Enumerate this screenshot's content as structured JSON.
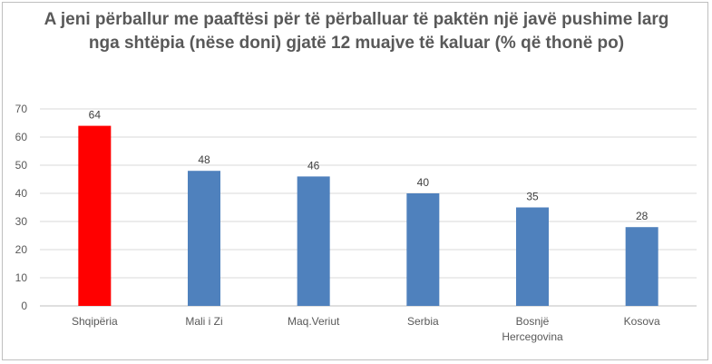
{
  "chart_data": {
    "type": "bar",
    "title": "A jeni përballur me paaftësi për të përballuar të paktën një javë pushime larg nga shtëpia (nëse doni) gjatë 12 muajve të kaluar (% që thonë po)",
    "categories": [
      "Shqipëria",
      "Mali i Zi",
      "Maq.Veriut",
      "Serbia",
      "Bosnjë Hercegovina",
      "Kosova"
    ],
    "category_lines": [
      [
        "Shqipëria"
      ],
      [
        "Mali i Zi"
      ],
      [
        "Maq.Veriut"
      ],
      [
        "Serbia"
      ],
      [
        "Bosnjë",
        "Hercegovina"
      ],
      [
        "Kosova"
      ]
    ],
    "values": [
      64,
      48,
      46,
      40,
      35,
      28
    ],
    "ylim": [
      0,
      70
    ],
    "yticks": [
      0,
      10,
      20,
      30,
      40,
      50,
      60,
      70
    ],
    "grid": true,
    "legend": "none",
    "colors": [
      "#ff0000",
      "#4f81bd",
      "#4f81bd",
      "#4f81bd",
      "#4f81bd",
      "#4f81bd"
    ]
  }
}
